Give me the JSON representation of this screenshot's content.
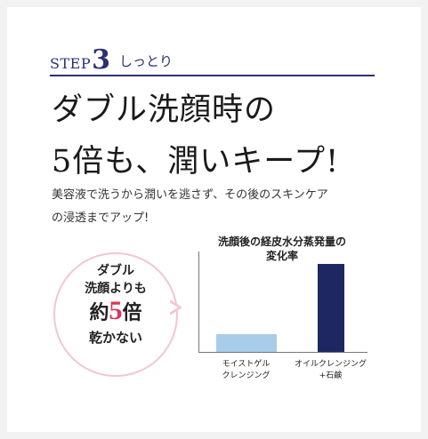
{
  "step": {
    "label": "STEP",
    "number": "3",
    "subtitle": "しっとり"
  },
  "headline": {
    "line1": "ダブル洗顔時の",
    "line2": "5倍も、潤いキープ!"
  },
  "body": {
    "line1": "美容液で洗うから潤いを逃さず、その後のスキンケア",
    "line2": "の浸透までアップ!"
  },
  "bubble": {
    "line1": "ダブル",
    "line2": "洗顔よりも",
    "line3_prefix": "約",
    "line3_number": "5",
    "line3_suffix": "倍",
    "line4": "乾かない"
  },
  "colors": {
    "brand_navy": "#2b3172",
    "bubble_border": "#f2c6d0",
    "accent_pink": "#e0335a",
    "bar_light": "#a8cdea",
    "bar_dark": "#1f2763"
  },
  "chart_data": {
    "type": "bar",
    "title": "洗顔後の経皮水分蒸発量の変化率",
    "title_line1": "洗顔後の経皮水分蒸発量の",
    "title_line2": "変化率",
    "categories": [
      {
        "line1": "モイストゲル",
        "line2": "クレンジング"
      },
      {
        "line1": "オイルクレンジング",
        "line2": "+石鹸"
      }
    ],
    "values": [
      1,
      5
    ],
    "ylim": [
      0,
      5.7
    ],
    "grid": false
  }
}
